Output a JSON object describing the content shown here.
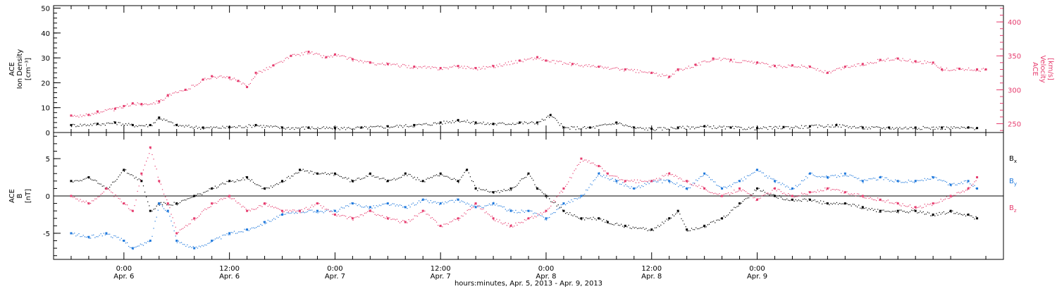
{
  "chart_data": [
    {
      "type": "scatter",
      "panel": "top",
      "ylabel": [
        "ACE",
        "Ion Density",
        "[cm⁻³]"
      ],
      "y2label": [
        "ACE",
        "Velocity",
        "[km/s]"
      ],
      "ylim": [
        0,
        51
      ],
      "y2lim": [
        237,
        424
      ],
      "yticks": [
        0,
        10,
        20,
        30,
        40,
        50
      ],
      "y2ticks": [
        250,
        300,
        350,
        400
      ],
      "series": [
        {
          "axis": "left",
          "color": "#000000",
          "points": [
            [
              -6,
              3
            ],
            [
              -3,
              3.5
            ],
            [
              -1,
              4
            ],
            [
              1,
              3
            ],
            [
              3,
              3
            ],
            [
              4,
              6
            ],
            [
              6,
              3
            ],
            [
              9,
              2
            ],
            [
              12,
              2.2
            ],
            [
              15,
              3
            ],
            [
              18,
              2
            ],
            [
              21,
              2
            ],
            [
              24,
              1.8
            ],
            [
              27,
              2
            ],
            [
              30,
              2.5
            ],
            [
              33,
              3
            ],
            [
              36,
              4
            ],
            [
              38,
              5
            ],
            [
              40,
              4
            ],
            [
              42,
              3.5
            ],
            [
              45,
              4
            ],
            [
              47,
              4
            ],
            [
              48.5,
              7
            ],
            [
              50,
              2
            ],
            [
              53,
              2
            ],
            [
              56,
              4
            ],
            [
              58,
              2
            ],
            [
              60,
              1.5
            ],
            [
              63,
              2
            ],
            [
              66,
              2.5
            ],
            [
              69,
              2
            ],
            [
              72,
              1.8
            ],
            [
              75,
              2.2
            ],
            [
              78,
              2.5
            ],
            [
              81,
              3
            ],
            [
              84,
              2
            ],
            [
              87,
              2
            ],
            [
              90,
              2
            ],
            [
              93,
              2
            ],
            [
              96,
              2
            ],
            [
              97,
              1.8
            ]
          ]
        },
        {
          "axis": "right",
          "color": "#e63c6e",
          "points": [
            [
              -6,
              262
            ],
            [
              -4,
              263
            ],
            [
              -3,
              268
            ],
            [
              -1,
              272
            ],
            [
              0,
              276
            ],
            [
              1,
              280
            ],
            [
              2,
              279
            ],
            [
              4,
              283
            ],
            [
              5,
              292
            ],
            [
              7,
              300
            ],
            [
              9,
              315
            ],
            [
              10,
              320
            ],
            [
              12,
              318
            ],
            [
              13,
              313
            ],
            [
              14,
              304
            ],
            [
              15,
              325
            ],
            [
              17,
              336
            ],
            [
              19,
              350
            ],
            [
              21,
              356
            ],
            [
              23,
              348
            ],
            [
              24,
              352
            ],
            [
              26,
              345
            ],
            [
              28,
              340
            ],
            [
              30,
              338
            ],
            [
              33,
              334
            ],
            [
              36,
              332
            ],
            [
              38,
              335
            ],
            [
              40,
              332
            ],
            [
              42,
              335
            ],
            [
              45,
              343
            ],
            [
              47,
              348
            ],
            [
              48,
              343
            ],
            [
              51,
              338
            ],
            [
              54,
              334
            ],
            [
              57,
              330
            ],
            [
              60,
              325
            ],
            [
              62,
              319
            ],
            [
              63,
              330
            ],
            [
              65,
              337
            ],
            [
              67,
              346
            ],
            [
              69,
              344
            ],
            [
              72,
              340
            ],
            [
              74,
              335
            ],
            [
              76,
              336
            ],
            [
              78,
              334
            ],
            [
              80,
              325
            ],
            [
              82,
              334
            ],
            [
              84,
              338
            ],
            [
              86,
              344
            ],
            [
              88,
              346
            ],
            [
              90,
              342
            ],
            [
              92,
              340
            ],
            [
              93,
              330
            ],
            [
              95,
              331
            ],
            [
              97,
              330
            ],
            [
              98,
              330
            ]
          ]
        }
      ]
    },
    {
      "type": "scatter",
      "panel": "bottom",
      "ylabel": [
        "ACE",
        "B",
        "[nT]"
      ],
      "ylim": [
        -8.5,
        8.5
      ],
      "yticks": [
        -5,
        0,
        5
      ],
      "legend": [
        {
          "label": "B",
          "sub": "x",
          "color": "#000000"
        },
        {
          "label": "B",
          "sub": "y",
          "color": "#1e78dc"
        },
        {
          "label": "B",
          "sub": "z",
          "color": "#e63c6e"
        }
      ],
      "series": [
        {
          "name": "Bx",
          "color": "#000000",
          "points": [
            [
              -6,
              2
            ],
            [
              -4,
              2.5
            ],
            [
              -2,
              1
            ],
            [
              0,
              3.5
            ],
            [
              2,
              2
            ],
            [
              3,
              -2
            ],
            [
              4,
              -1
            ],
            [
              6,
              -1
            ],
            [
              8,
              0
            ],
            [
              10,
              1
            ],
            [
              12,
              2
            ],
            [
              14,
              2.5
            ],
            [
              16,
              1
            ],
            [
              18,
              2
            ],
            [
              20,
              3.5
            ],
            [
              22,
              3
            ],
            [
              24,
              3
            ],
            [
              26,
              2
            ],
            [
              28,
              3
            ],
            [
              30,
              2
            ],
            [
              32,
              3
            ],
            [
              34,
              2
            ],
            [
              36,
              3
            ],
            [
              38,
              2
            ],
            [
              39,
              3.5
            ],
            [
              40,
              1
            ],
            [
              42,
              0.5
            ],
            [
              44,
              1
            ],
            [
              46,
              3
            ],
            [
              47,
              1
            ],
            [
              48,
              0
            ],
            [
              50,
              -2
            ],
            [
              52,
              -3
            ],
            [
              54,
              -3
            ],
            [
              55,
              -3.5
            ],
            [
              57,
              -4
            ],
            [
              60,
              -4.5
            ],
            [
              62,
              -3
            ],
            [
              63,
              -2
            ],
            [
              64,
              -4.5
            ],
            [
              66,
              -4
            ],
            [
              68,
              -3
            ],
            [
              70,
              -1
            ],
            [
              72,
              1
            ],
            [
              74,
              0
            ],
            [
              76,
              -0.5
            ],
            [
              78,
              -0.5
            ],
            [
              80,
              -1
            ],
            [
              82,
              -1
            ],
            [
              84,
              -1.5
            ],
            [
              86,
              -2
            ],
            [
              88,
              -2
            ],
            [
              90,
              -2
            ],
            [
              92,
              -2.5
            ],
            [
              94,
              -2
            ],
            [
              96,
              -2.5
            ],
            [
              97,
              -3
            ]
          ]
        },
        {
          "name": "By",
          "color": "#1e78dc",
          "points": [
            [
              -6,
              -5
            ],
            [
              -4,
              -5.5
            ],
            [
              -2,
              -5
            ],
            [
              0,
              -6
            ],
            [
              1,
              -7
            ],
            [
              3,
              -6
            ],
            [
              4,
              -1
            ],
            [
              5,
              -2
            ],
            [
              6,
              -6
            ],
            [
              8,
              -7
            ],
            [
              10,
              -6
            ],
            [
              12,
              -5
            ],
            [
              14,
              -4.5
            ],
            [
              16,
              -3.5
            ],
            [
              18,
              -2.5
            ],
            [
              20,
              -2
            ],
            [
              22,
              -2
            ],
            [
              24,
              -2
            ],
            [
              26,
              -1
            ],
            [
              28,
              -1.5
            ],
            [
              30,
              -1
            ],
            [
              32,
              -1.5
            ],
            [
              34,
              -0.5
            ],
            [
              36,
              -1
            ],
            [
              38,
              -0.5
            ],
            [
              40,
              -1.5
            ],
            [
              42,
              -1
            ],
            [
              44,
              -2
            ],
            [
              46,
              -2
            ],
            [
              48,
              -3
            ],
            [
              50,
              -1
            ],
            [
              52,
              0
            ],
            [
              54,
              3
            ],
            [
              56,
              2
            ],
            [
              58,
              1
            ],
            [
              60,
              2
            ],
            [
              62,
              2
            ],
            [
              64,
              1
            ],
            [
              66,
              3
            ],
            [
              68,
              1
            ],
            [
              70,
              2
            ],
            [
              72,
              3.5
            ],
            [
              74,
              2
            ],
            [
              76,
              1
            ],
            [
              78,
              3
            ],
            [
              80,
              2.5
            ],
            [
              82,
              3
            ],
            [
              84,
              2
            ],
            [
              86,
              2.5
            ],
            [
              88,
              2
            ],
            [
              90,
              2
            ],
            [
              92,
              2.5
            ],
            [
              94,
              1.5
            ],
            [
              96,
              2
            ],
            [
              97,
              1
            ]
          ]
        },
        {
          "name": "Bz",
          "color": "#e63c6e",
          "points": [
            [
              -6,
              0
            ],
            [
              -4,
              -1
            ],
            [
              -2,
              1
            ],
            [
              0,
              -1
            ],
            [
              1,
              -2
            ],
            [
              2,
              3
            ],
            [
              3,
              6.5
            ],
            [
              4,
              2
            ],
            [
              5,
              -1
            ],
            [
              6,
              -5
            ],
            [
              8,
              -3
            ],
            [
              10,
              -1
            ],
            [
              12,
              0
            ],
            [
              14,
              -2
            ],
            [
              16,
              -1
            ],
            [
              18,
              -2
            ],
            [
              20,
              -2
            ],
            [
              22,
              -1
            ],
            [
              24,
              -2.5
            ],
            [
              26,
              -3
            ],
            [
              28,
              -2
            ],
            [
              30,
              -3
            ],
            [
              32,
              -3.5
            ],
            [
              34,
              -2
            ],
            [
              36,
              -4
            ],
            [
              38,
              -3
            ],
            [
              40,
              -1
            ],
            [
              42,
              -3
            ],
            [
              44,
              -4
            ],
            [
              46,
              -3
            ],
            [
              48,
              -2
            ],
            [
              50,
              1
            ],
            [
              52,
              5
            ],
            [
              54,
              4
            ],
            [
              55,
              3
            ],
            [
              57,
              2
            ],
            [
              60,
              2
            ],
            [
              62,
              3
            ],
            [
              64,
              2
            ],
            [
              66,
              1
            ],
            [
              68,
              0
            ],
            [
              70,
              1
            ],
            [
              72,
              -0.5
            ],
            [
              74,
              1
            ],
            [
              76,
              0
            ],
            [
              78,
              0.5
            ],
            [
              80,
              1
            ],
            [
              82,
              0.5
            ],
            [
              84,
              0
            ],
            [
              86,
              -0.5
            ],
            [
              88,
              -1
            ],
            [
              90,
              -1.5
            ],
            [
              92,
              -1
            ],
            [
              94,
              0
            ],
            [
              96,
              1
            ],
            [
              97,
              2.5
            ]
          ]
        }
      ]
    }
  ],
  "x_axis": {
    "range_hours": [
      -8,
      100
    ],
    "ticks": [
      {
        "time": "0:00",
        "date": "Apr. 6"
      },
      {
        "time": "12:00",
        "date": "Apr. 6"
      },
      {
        "time": "0:00",
        "date": "Apr. 7"
      },
      {
        "time": "12:00",
        "date": "Apr. 7"
      },
      {
        "time": "0:00",
        "date": "Apr. 8"
      },
      {
        "time": "12:00",
        "date": "Apr. 8"
      },
      {
        "time": "0:00",
        "date": "Apr. 9"
      }
    ],
    "label": "hours:minutes, Apr.  5, 2013 - Apr.  9, 2013"
  },
  "colors": {
    "density": "#000000",
    "velocity": "#e63c6e",
    "bx": "#000000",
    "by": "#1e78dc",
    "bz": "#e63c6e"
  }
}
